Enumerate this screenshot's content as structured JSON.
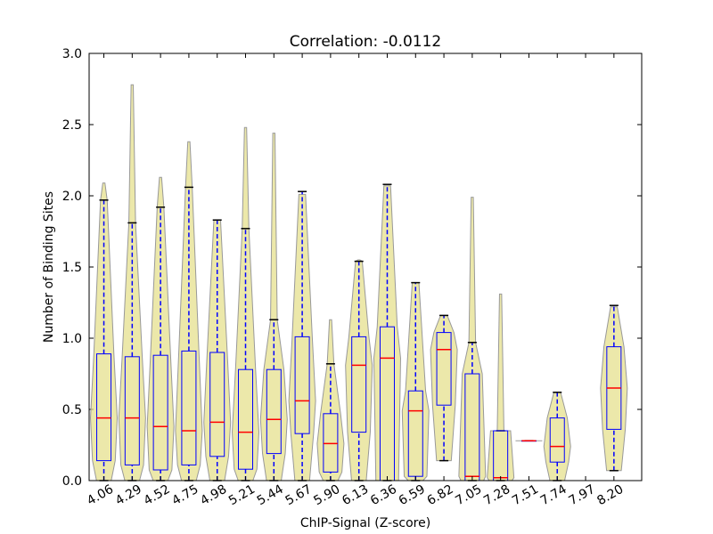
{
  "chart_data": {
    "type": "violin",
    "title": "Correlation: -0.0112",
    "xlabel": "ChIP-Signal (Z-score)",
    "ylabel": "Number of Binding Sites",
    "categories": [
      "4.06",
      "4.29",
      "4.52",
      "4.75",
      "4.98",
      "5.21",
      "5.44",
      "5.67",
      "5.90",
      "6.13",
      "6.36",
      "6.59",
      "6.82",
      "7.05",
      "7.28",
      "7.51",
      "7.74",
      "7.97",
      "8.20"
    ],
    "stats": {
      "whislo": [
        0,
        0,
        0,
        0,
        0,
        0,
        0,
        0,
        0,
        0,
        0,
        0,
        0.14,
        0,
        0,
        0.28,
        0,
        null,
        0.07
      ],
      "q1": [
        0.14,
        0.11,
        0.075,
        0.11,
        0.17,
        0.08,
        0.19,
        0.33,
        0.06,
        0.34,
        0,
        0.03,
        0.53,
        0,
        0,
        0.28,
        0.13,
        null,
        0.36
      ],
      "med": [
        0.44,
        0.44,
        0.38,
        0.35,
        0.41,
        0.34,
        0.43,
        0.56,
        0.26,
        0.81,
        0.86,
        0.49,
        0.92,
        0.03,
        0.02,
        0.28,
        0.24,
        null,
        0.65
      ],
      "q3": [
        0.89,
        0.87,
        0.88,
        0.91,
        0.9,
        0.78,
        0.78,
        1.01,
        0.47,
        1.01,
        1.08,
        0.63,
        1.04,
        0.75,
        0.35,
        0.28,
        0.44,
        null,
        0.94
      ],
      "whishi": [
        1.97,
        1.81,
        1.92,
        2.06,
        1.83,
        1.77,
        1.13,
        2.03,
        0.82,
        1.54,
        2.08,
        1.39,
        1.16,
        0.97,
        0.35,
        0.28,
        0.62,
        null,
        1.23
      ],
      "vmin": [
        0,
        0,
        0,
        0,
        0,
        0,
        0,
        0,
        0,
        0,
        0,
        0,
        0.14,
        0,
        0,
        0.28,
        0,
        null,
        0.07
      ],
      "vmax": [
        2.09,
        2.78,
        2.13,
        2.38,
        1.83,
        2.48,
        2.44,
        2.01,
        1.13,
        1.55,
        2.07,
        1.39,
        1.16,
        1.99,
        1.31,
        0.28,
        0.62,
        null,
        1.22
      ]
    },
    "violin_color": "#e6e08e",
    "box_color": "#0000ff",
    "median_color": "#ff0000",
    "ylim": [
      0,
      3
    ],
    "yticks": [
      {
        "value": 0,
        "label": "0.0"
      },
      {
        "value": 0.5,
        "label": "0.5"
      },
      {
        "value": 1,
        "label": "1.0"
      },
      {
        "value": 1.5,
        "label": "1.5"
      },
      {
        "value": 2,
        "label": "2.0"
      },
      {
        "value": 2.5,
        "label": "2.5"
      },
      {
        "value": 3,
        "label": "3.0"
      }
    ]
  }
}
